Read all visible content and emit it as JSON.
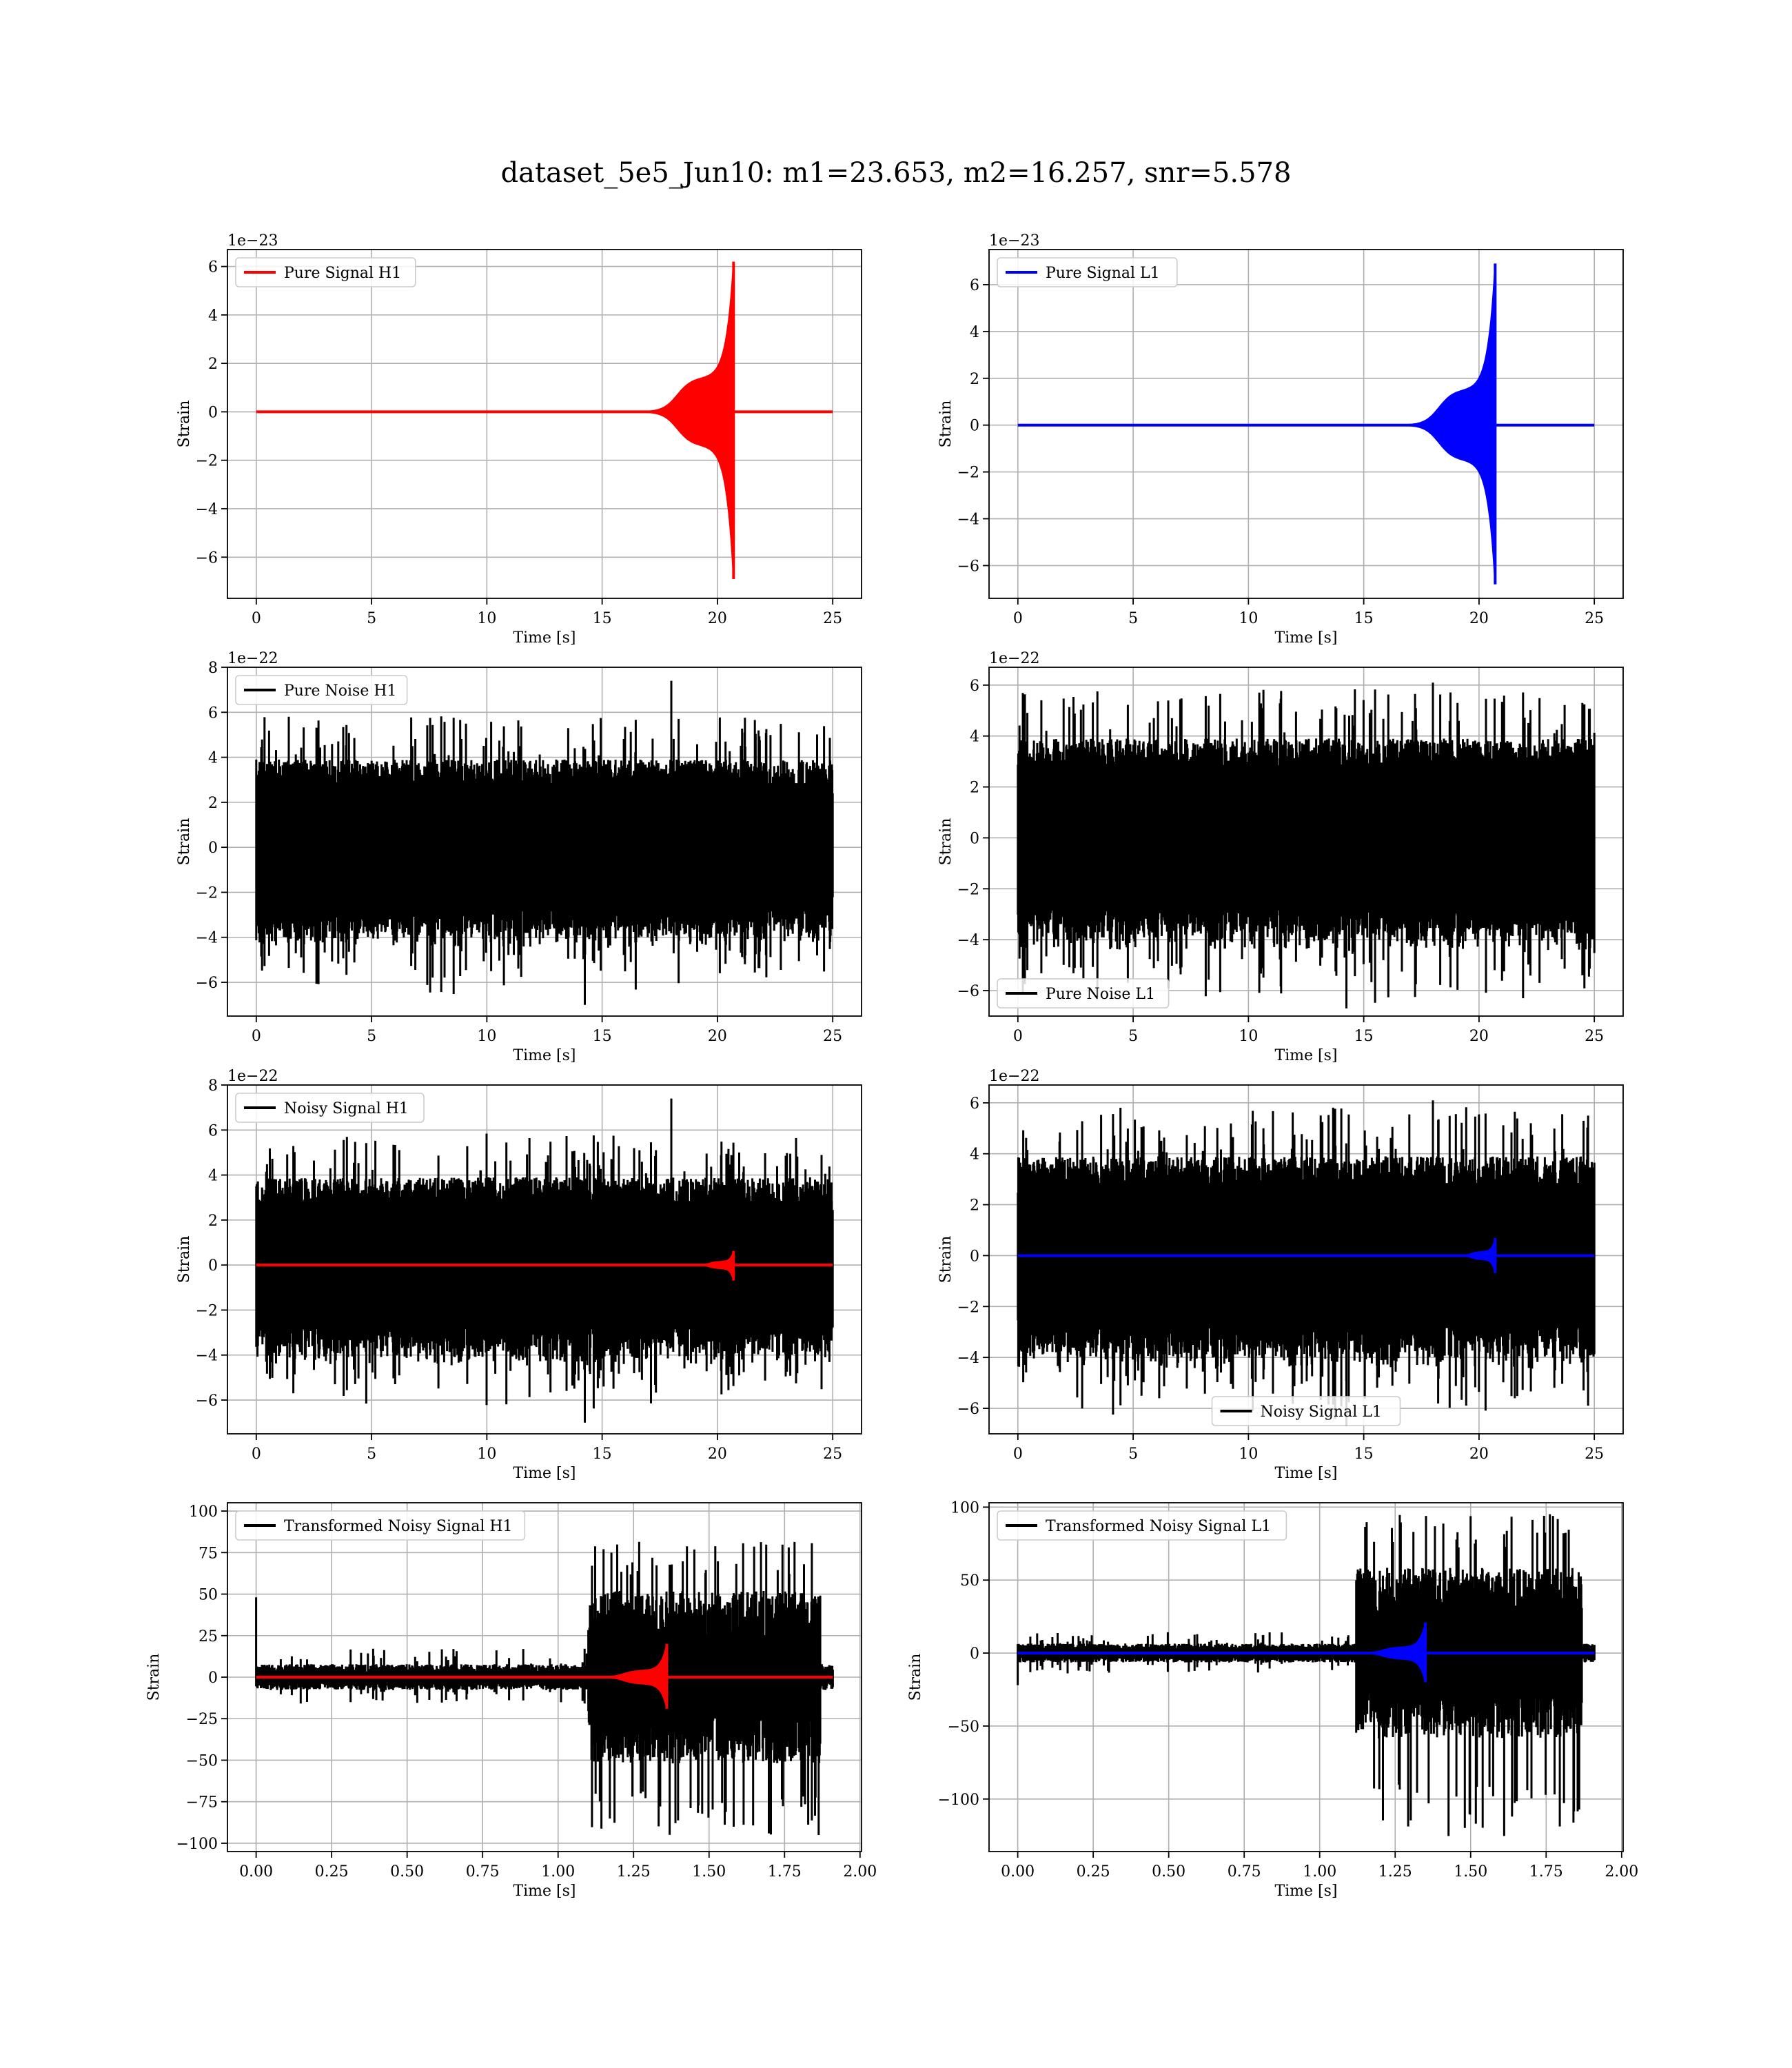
{
  "figure": {
    "title": "dataset_5e5_Jun10: m1=23.653, m2=16.257, snr=5.578"
  },
  "colors": {
    "h1": "#ff0000",
    "l1": "#0000ff",
    "noise": "#000000",
    "grid": "#b0b0b0"
  },
  "chart_data": [
    {
      "id": "pure-signal-h1",
      "type": "line",
      "grid": true,
      "legend_position": "upper-left",
      "offset_text": "1e−23",
      "xlabel": "Time [s]",
      "ylabel": "Strain",
      "xlim": [
        -1.25,
        26.25
      ],
      "ylim": [
        -7.7,
        6.7
      ],
      "xticks": [
        0,
        5,
        10,
        15,
        20,
        25
      ],
      "xtick_labels": [
        "0",
        "5",
        "10",
        "15",
        "20",
        "25"
      ],
      "yticks": [
        -6,
        -4,
        -2,
        0,
        2,
        4,
        6
      ],
      "ytick_labels": [
        "−6",
        "−4",
        "−2",
        "0",
        "2",
        "4",
        "6"
      ],
      "series": [
        {
          "name": "Pure Signal H1",
          "kind": "chirp",
          "color": "#ff0000",
          "x_range": [
            0,
            25
          ],
          "onset": 12.0,
          "merger": 20.7,
          "shoulder": 1.4,
          "peak_pos": 6.2,
          "peak_neg": -6.9
        }
      ]
    },
    {
      "id": "pure-signal-l1",
      "type": "line",
      "grid": true,
      "legend_position": "upper-left",
      "offset_text": "1e−23",
      "xlabel": "Time [s]",
      "ylabel": "Strain",
      "xlim": [
        -1.25,
        26.25
      ],
      "ylim": [
        -7.4,
        7.5
      ],
      "xticks": [
        0,
        5,
        10,
        15,
        20,
        25
      ],
      "xtick_labels": [
        "0",
        "5",
        "10",
        "15",
        "20",
        "25"
      ],
      "yticks": [
        -6,
        -4,
        -2,
        0,
        2,
        4,
        6
      ],
      "ytick_labels": [
        "−6",
        "−4",
        "−2",
        "0",
        "2",
        "4",
        "6"
      ],
      "series": [
        {
          "name": "Pure Signal L1",
          "kind": "chirp",
          "color": "#0000ff",
          "x_range": [
            0,
            25
          ],
          "onset": 12.0,
          "merger": 20.7,
          "shoulder": 1.5,
          "peak_pos": 6.9,
          "peak_neg": -6.8
        }
      ]
    },
    {
      "id": "pure-noise-h1",
      "type": "line",
      "grid": true,
      "legend_position": "upper-left",
      "offset_text": "1e−22",
      "xlabel": "Time [s]",
      "ylabel": "Strain",
      "xlim": [
        -1.25,
        26.25
      ],
      "ylim": [
        -7.5,
        8.0
      ],
      "xticks": [
        0,
        5,
        10,
        15,
        20,
        25
      ],
      "xtick_labels": [
        "0",
        "5",
        "10",
        "15",
        "20",
        "25"
      ],
      "yticks": [
        -6,
        -4,
        -2,
        0,
        2,
        4,
        6,
        8
      ],
      "ytick_labels": [
        "−6",
        "−4",
        "−2",
        "0",
        "2",
        "4",
        "6",
        "8"
      ],
      "series": [
        {
          "name": "Pure Noise H1",
          "kind": "noise",
          "color": "#000000",
          "x_range": [
            0,
            25
          ],
          "band": 3.0,
          "max": 7.4,
          "min": -7.0
        }
      ]
    },
    {
      "id": "pure-noise-l1",
      "type": "line",
      "grid": true,
      "legend_position": "lower-left",
      "offset_text": "1e−22",
      "xlabel": "Time [s]",
      "ylabel": "Strain",
      "xlim": [
        -1.25,
        26.25
      ],
      "ylim": [
        -7.0,
        6.7
      ],
      "xticks": [
        0,
        5,
        10,
        15,
        20,
        25
      ],
      "xtick_labels": [
        "0",
        "5",
        "10",
        "15",
        "20",
        "25"
      ],
      "yticks": [
        -6,
        -4,
        -2,
        0,
        2,
        4,
        6
      ],
      "ytick_labels": [
        "−6",
        "−4",
        "−2",
        "0",
        "2",
        "4",
        "6"
      ],
      "series": [
        {
          "name": "Pure Noise L1",
          "kind": "noise",
          "color": "#000000",
          "x_range": [
            0,
            25
          ],
          "band": 3.0,
          "max": 6.1,
          "min": -6.7
        }
      ]
    },
    {
      "id": "noisy-signal-h1",
      "type": "line",
      "grid": true,
      "legend_position": "upper-left",
      "offset_text": "1e−22",
      "xlabel": "Time [s]",
      "ylabel": "Strain",
      "xlim": [
        -1.25,
        26.25
      ],
      "ylim": [
        -7.5,
        8.0
      ],
      "xticks": [
        0,
        5,
        10,
        15,
        20,
        25
      ],
      "xtick_labels": [
        "0",
        "5",
        "10",
        "15",
        "20",
        "25"
      ],
      "yticks": [
        -6,
        -4,
        -2,
        0,
        2,
        4,
        6,
        8
      ],
      "ytick_labels": [
        "−6",
        "−4",
        "−2",
        "0",
        "2",
        "4",
        "6",
        "8"
      ],
      "series": [
        {
          "name": "Noisy Signal H1",
          "kind": "noise",
          "color": "#000000",
          "x_range": [
            0,
            25
          ],
          "band": 3.0,
          "max": 7.4,
          "min": -7.0
        },
        {
          "name": "",
          "kind": "chirp",
          "color": "#ff0000",
          "x_range": [
            0,
            25
          ],
          "onset": 17.0,
          "merger": 20.7,
          "shoulder": 0.15,
          "peak_pos": 0.62,
          "peak_neg": -0.69
        }
      ]
    },
    {
      "id": "noisy-signal-l1",
      "type": "line",
      "grid": true,
      "legend_position": "lower-center",
      "offset_text": "1e−22",
      "xlabel": "Time [s]",
      "ylabel": "Strain",
      "xlim": [
        -1.25,
        26.25
      ],
      "ylim": [
        -7.0,
        6.7
      ],
      "xticks": [
        0,
        5,
        10,
        15,
        20,
        25
      ],
      "xtick_labels": [
        "0",
        "5",
        "10",
        "15",
        "20",
        "25"
      ],
      "yticks": [
        -6,
        -4,
        -2,
        0,
        2,
        4,
        6
      ],
      "ytick_labels": [
        "−6",
        "−4",
        "−2",
        "0",
        "2",
        "4",
        "6"
      ],
      "series": [
        {
          "name": "Noisy Signal L1",
          "kind": "noise",
          "color": "#000000",
          "x_range": [
            0,
            25
          ],
          "band": 3.0,
          "max": 6.1,
          "min": -6.7
        },
        {
          "name": "",
          "kind": "chirp",
          "color": "#0000ff",
          "x_range": [
            0,
            25
          ],
          "onset": 17.0,
          "merger": 20.7,
          "shoulder": 0.15,
          "peak_pos": 0.69,
          "peak_neg": -0.68
        }
      ]
    },
    {
      "id": "transformed-noisy-signal-h1",
      "type": "line",
      "grid": true,
      "legend_position": "upper-left",
      "offset_text": "",
      "xlabel": "Time [s]",
      "ylabel": "Strain",
      "xlim": [
        -0.095,
        2.005
      ],
      "ylim": [
        -105,
        105
      ],
      "xticks": [
        0,
        0.25,
        0.5,
        0.75,
        1.0,
        1.25,
        1.5,
        1.75,
        2.0
      ],
      "xtick_labels": [
        "0.00",
        "0.25",
        "0.50",
        "0.75",
        "1.00",
        "1.25",
        "1.50",
        "1.75",
        "2.00"
      ],
      "yticks": [
        -100,
        -75,
        -50,
        -25,
        0,
        25,
        50,
        75,
        100
      ],
      "ytick_labels": [
        "−100",
        "−75",
        "−50",
        "−25",
        "0",
        "25",
        "50",
        "75",
        "100"
      ],
      "series": [
        {
          "name": "Transformed Noisy Signal H1",
          "kind": "transformed",
          "color": "#000000",
          "x_range": [
            0,
            1.91
          ],
          "step_at": 1.1,
          "end_at": 1.87,
          "low_band": 6,
          "high_band": 40,
          "max": 82,
          "min": -96,
          "spike": 48
        },
        {
          "name": "",
          "kind": "chirp",
          "color": "#ff0000",
          "x_range": [
            0,
            1.91
          ],
          "onset": 0.85,
          "merger": 1.36,
          "shoulder": 4,
          "peak_pos": 20,
          "peak_neg": -19
        }
      ]
    },
    {
      "id": "transformed-noisy-signal-l1",
      "type": "line",
      "grid": true,
      "legend_position": "upper-left",
      "offset_text": "",
      "xlabel": "Time [s]",
      "ylabel": "Strain",
      "xlim": [
        -0.095,
        2.005
      ],
      "ylim": [
        -136,
        103
      ],
      "xticks": [
        0,
        0.25,
        0.5,
        0.75,
        1.0,
        1.25,
        1.5,
        1.75,
        2.0
      ],
      "xtick_labels": [
        "0.00",
        "0.25",
        "0.50",
        "0.75",
        "1.00",
        "1.25",
        "1.50",
        "1.75",
        "2.00"
      ],
      "yticks": [
        -100,
        -50,
        0,
        50,
        100
      ],
      "ytick_labels": [
        "−100",
        "−50",
        "0",
        "50",
        "100"
      ],
      "series": [
        {
          "name": "Transformed Noisy Signal L1",
          "kind": "transformed",
          "color": "#000000",
          "x_range": [
            0,
            1.91
          ],
          "step_at": 1.12,
          "end_at": 1.87,
          "low_band": 5,
          "high_band": 45,
          "max": 96,
          "min": -126,
          "spike": -22
        },
        {
          "name": "",
          "kind": "chirp",
          "color": "#0000ff",
          "x_range": [
            0,
            1.91
          ],
          "onset": 0.85,
          "merger": 1.35,
          "shoulder": 4,
          "peak_pos": 21,
          "peak_neg": -20
        }
      ]
    }
  ]
}
